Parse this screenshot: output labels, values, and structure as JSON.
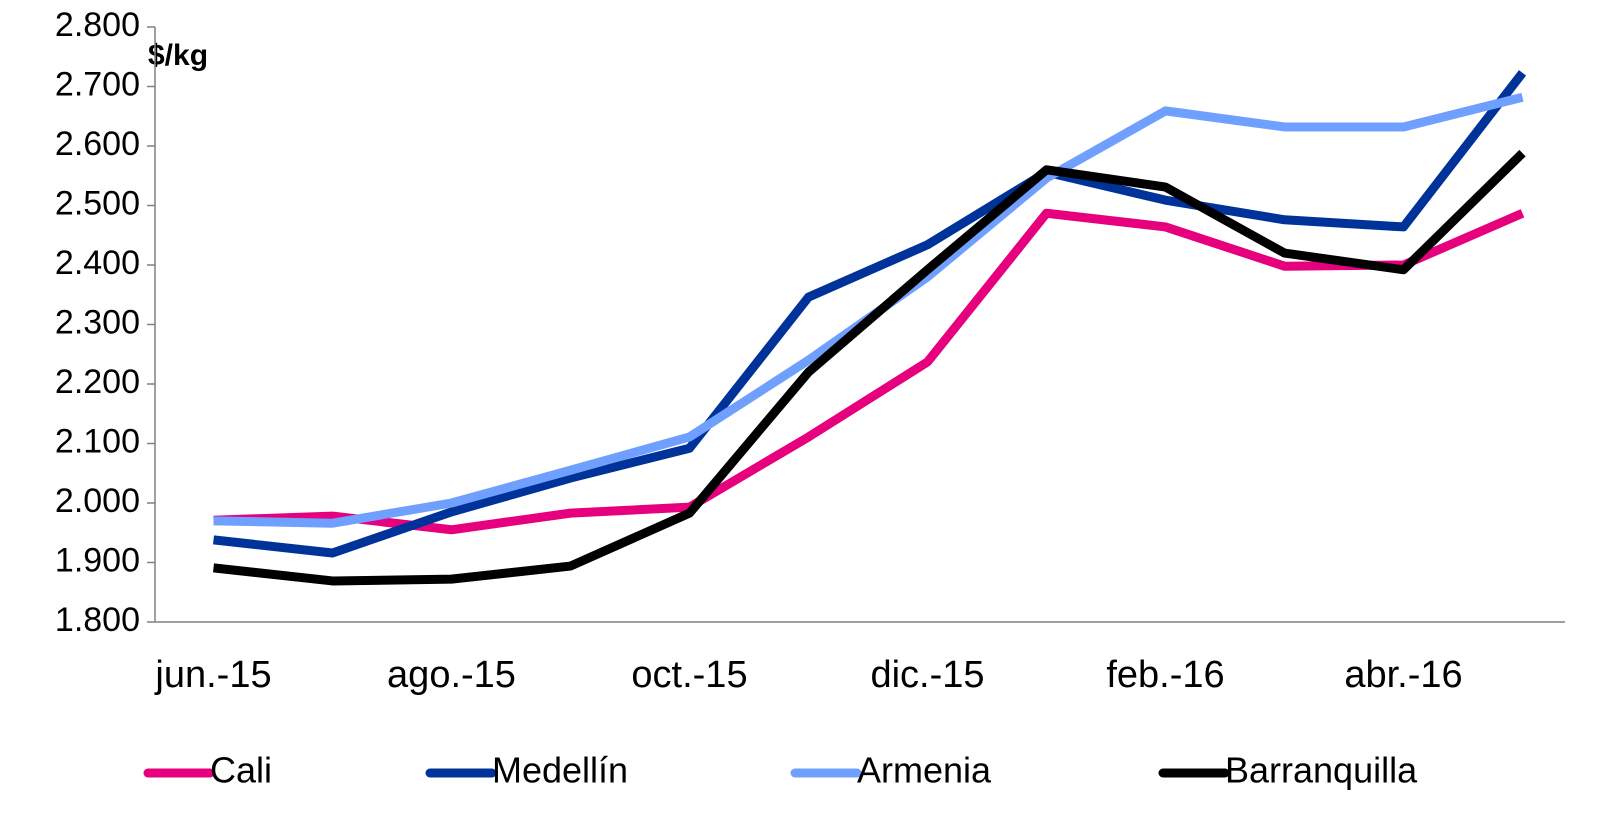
{
  "chart_data": {
    "type": "line",
    "y_label": "$/kg",
    "categories": [
      "jun.-15",
      null,
      "ago.-15",
      null,
      "oct.-15",
      null,
      "dic.-15",
      null,
      "feb.-16",
      null,
      "abr.-16",
      null
    ],
    "ylim": [
      1800,
      2800
    ],
    "yticks": [
      {
        "value": 1800,
        "label": "1.800"
      },
      {
        "value": 1900,
        "label": "1.900"
      },
      {
        "value": 2000,
        "label": "2.000"
      },
      {
        "value": 2100,
        "label": "2.100"
      },
      {
        "value": 2200,
        "label": "2.200"
      },
      {
        "value": 2300,
        "label": "2.300"
      },
      {
        "value": 2400,
        "label": "2.400"
      },
      {
        "value": 2500,
        "label": "2.500"
      },
      {
        "value": 2600,
        "label": "2.600"
      },
      {
        "value": 2700,
        "label": "2.700"
      },
      {
        "value": 2800,
        "label": "2.800"
      }
    ],
    "grid": false,
    "legend": "bottom",
    "series": [
      {
        "name": "Cali",
        "color": "#e6007e",
        "values": [
          1971,
          1978,
          1955,
          1983,
          1993,
          2111,
          2237,
          2487,
          2464,
          2398,
          2400,
          2487
        ]
      },
      {
        "name": "Medellín",
        "color": "#003399",
        "values": [
          1938,
          1916,
          1985,
          2042,
          2092,
          2346,
          2434,
          2556,
          2509,
          2476,
          2464,
          2723
        ]
      },
      {
        "name": "Armenia",
        "color": "#6fa0ff",
        "values": [
          1970,
          1966,
          2000,
          2055,
          2111,
          2240,
          2380,
          2546,
          2659,
          2632,
          2632,
          2682
        ]
      },
      {
        "name": "Barranquilla",
        "color": "#000000",
        "values": [
          1891,
          1869,
          1872,
          1894,
          1983,
          2220,
          2392,
          2560,
          2531,
          2420,
          2392,
          2588
        ]
      }
    ]
  }
}
